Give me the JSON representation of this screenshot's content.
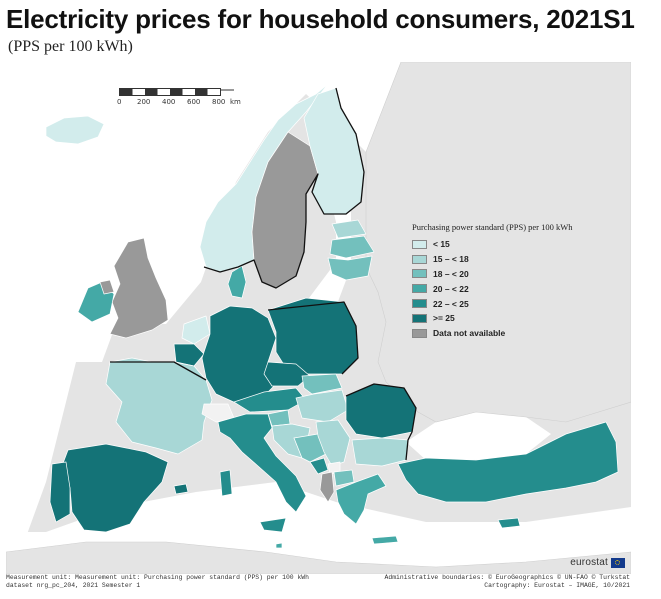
{
  "title": "Electricity prices for household consumers, 2021S1",
  "subtitle": "(PPS per 100 kWh)",
  "scale": {
    "ticks": [
      "0",
      "200",
      "400",
      "600",
      "800"
    ],
    "unit": "km"
  },
  "legend": {
    "title": "Purchasing power standard (PPS) per 100 kWh",
    "items": [
      {
        "label": "< 15",
        "color": "#d2ecec"
      },
      {
        "label": "15 – < 18",
        "color": "#a8d7d6"
      },
      {
        "label": "18 – < 20",
        "color": "#73c0bd"
      },
      {
        "label": "20 – < 22",
        "color": "#44a9a6"
      },
      {
        "label": "22 – < 25",
        "color": "#248d8d"
      },
      {
        "label": ">= 25",
        "color": "#147377"
      },
      {
        "label": "Data not available",
        "color": "#999999"
      }
    ]
  },
  "logo": "eurostat",
  "footer": {
    "left_line1": "Measurement unit: Measurement unit: Purchasing power standard (PPS) per 100 kWh",
    "left_line2": "dataset nrg_pc_204, 2021 Semester 1",
    "right_line1": "Administrative boundaries: © EuroGeographics © UN-FAO © Turkstat",
    "right_line2": "Cartography: Eurostat – IMAGE, 10/2021"
  },
  "map_data": {
    "classes": [
      {
        "class": "lt15",
        "countries": [
          "Iceland",
          "Norway",
          "Finland",
          "Netherlands"
        ]
      },
      {
        "class": "15-18",
        "countries": [
          "Estonia",
          "France",
          "Hungary",
          "Bulgaria",
          "Serbia",
          "Croatia"
        ]
      },
      {
        "class": "18-20",
        "countries": [
          "Latvia",
          "Lithuania",
          "Slovakia",
          "Slovenia",
          "Bosnia and Herzegovina",
          "North Macedonia"
        ]
      },
      {
        "class": "20-22",
        "countries": [
          "Denmark",
          "Ireland",
          "Greece",
          "Malta"
        ]
      },
      {
        "class": "22-25",
        "countries": [
          "Italy",
          "Austria",
          "Cyprus",
          "Turkey",
          "Montenegro"
        ]
      },
      {
        "class": ">=25",
        "countries": [
          "Germany",
          "Poland",
          "Czechia",
          "Belgium",
          "Portugal",
          "Spain",
          "Romania"
        ]
      },
      {
        "class": "na",
        "countries": [
          "Sweden",
          "United Kingdom",
          "Northern Ireland",
          "Albania"
        ]
      },
      {
        "class": "none",
        "countries": [
          "Switzerland",
          "Kosovo"
        ]
      }
    ]
  }
}
